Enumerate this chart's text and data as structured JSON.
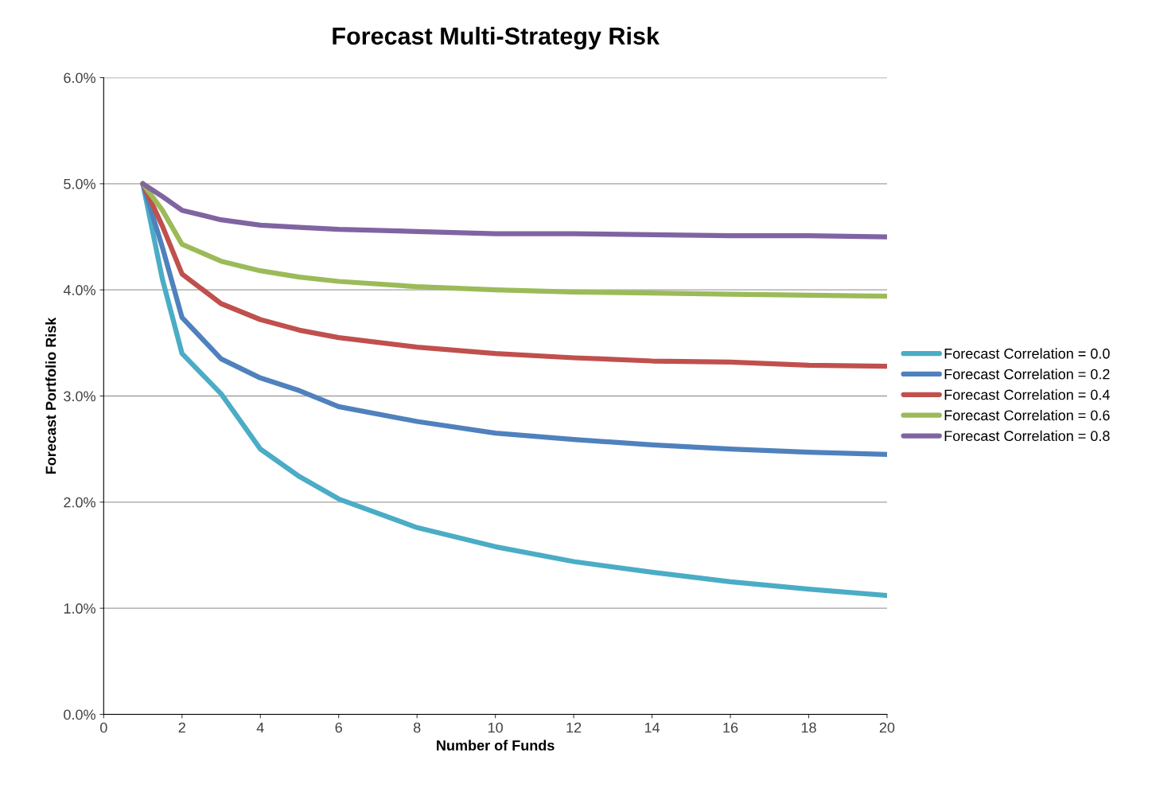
{
  "chart_data": {
    "type": "line",
    "title": "Forecast Multi-Strategy Risk",
    "xlabel": "Number of Funds",
    "ylabel": "Forecast Portfolio Risk",
    "x": [
      1,
      1.5,
      2,
      3,
      4,
      5,
      6,
      8,
      10,
      12,
      14,
      16,
      18,
      20
    ],
    "series": [
      {
        "name": "Forecast Correlation = 0.0",
        "color": "#4bacc6",
        "values": [
          5.0,
          4.1,
          3.4,
          3.02,
          2.5,
          2.24,
          2.03,
          1.76,
          1.58,
          1.44,
          1.34,
          1.25,
          1.18,
          1.12
        ]
      },
      {
        "name": "Forecast Correlation = 0.2",
        "color": "#4f81bd",
        "values": [
          5.0,
          4.4,
          3.74,
          3.35,
          3.17,
          3.05,
          2.9,
          2.76,
          2.65,
          2.59,
          2.54,
          2.5,
          2.47,
          2.45
        ]
      },
      {
        "name": "Forecast Correlation = 0.4",
        "color": "#c0504d",
        "values": [
          5.0,
          4.6,
          4.15,
          3.87,
          3.72,
          3.62,
          3.55,
          3.46,
          3.4,
          3.36,
          3.33,
          3.32,
          3.29,
          3.28
        ]
      },
      {
        "name": "Forecast Correlation = 0.6",
        "color": "#9bbb59",
        "values": [
          5.0,
          4.75,
          4.43,
          4.27,
          4.18,
          4.12,
          4.08,
          4.03,
          4.0,
          3.98,
          3.97,
          3.96,
          3.95,
          3.94
        ]
      },
      {
        "name": "Forecast Correlation = 0.8",
        "color": "#8064a2",
        "values": [
          5.0,
          4.88,
          4.75,
          4.66,
          4.61,
          4.59,
          4.57,
          4.55,
          4.53,
          4.53,
          4.52,
          4.51,
          4.51,
          4.5
        ]
      }
    ],
    "xlim": [
      0,
      20
    ],
    "xticks": [
      0,
      2,
      4,
      6,
      8,
      10,
      12,
      14,
      16,
      18,
      20
    ],
    "ylim": [
      0,
      6
    ],
    "yticks": [
      {
        "value": 0,
        "label": "0.0%"
      },
      {
        "value": 1,
        "label": "1.0%"
      },
      {
        "value": 2,
        "label": "2.0%"
      },
      {
        "value": 3,
        "label": "3.0%"
      },
      {
        "value": 4,
        "label": "4.0%"
      },
      {
        "value": 5,
        "label": "5.0%"
      },
      {
        "value": 6,
        "label": "6.0%"
      }
    ],
    "grid": "y",
    "legend": "right",
    "marker": "none",
    "line_style": "solid"
  }
}
